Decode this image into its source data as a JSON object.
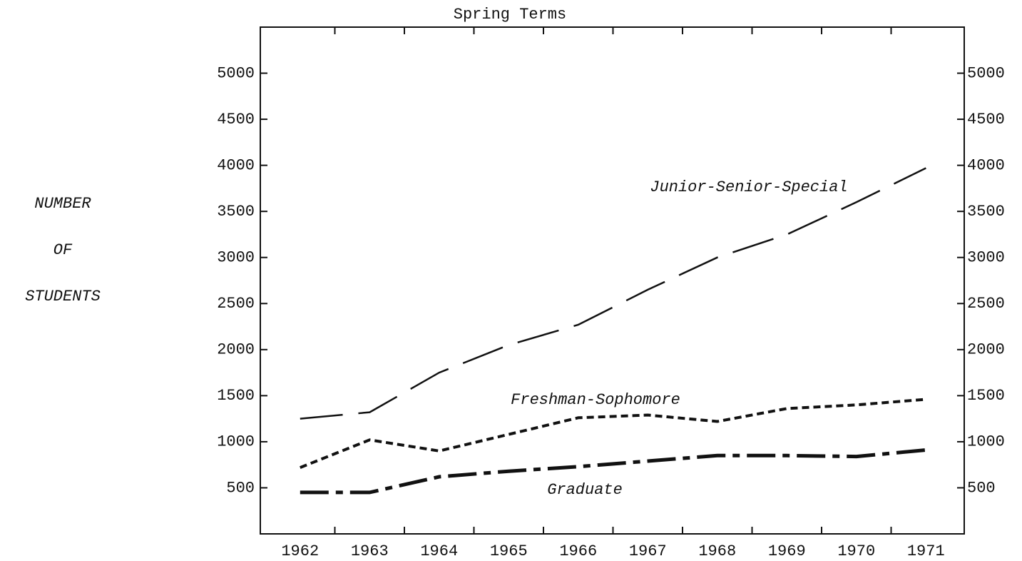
{
  "chart_data": {
    "type": "line",
    "title": "Spring Terms",
    "ylabel": [
      "NUMBER",
      "OF",
      "STUDENTS"
    ],
    "categories": [
      "1962",
      "1963",
      "1964",
      "1965",
      "1966",
      "1967",
      "1968",
      "1969",
      "1970",
      "1971"
    ],
    "series": [
      {
        "name": "Junior-Senior-Special",
        "color": "#111111",
        "values": [
          1250,
          1320,
          1750,
          2050,
          2270,
          2650,
          3000,
          3250,
          3600,
          3970
        ]
      },
      {
        "name": "Freshman-Sophomore",
        "color": "#111111",
        "values": [
          720,
          1020,
          900,
          1080,
          1260,
          1290,
          1220,
          1360,
          1400,
          1460
        ]
      },
      {
        "name": "Graduate",
        "color": "#111111",
        "values": [
          450,
          450,
          620,
          680,
          730,
          790,
          850,
          850,
          840,
          910
        ]
      }
    ],
    "ylim": [
      0,
      5500
    ],
    "yticks": [
      500,
      1000,
      1500,
      2000,
      2500,
      3000,
      3500,
      4000,
      4500,
      5000
    ],
    "y2lim": [
      0,
      5500
    ],
    "y2ticks": [
      500,
      1000,
      1500,
      2000,
      2500,
      3000,
      3500,
      4000,
      4500,
      5000
    ],
    "grid": false
  }
}
